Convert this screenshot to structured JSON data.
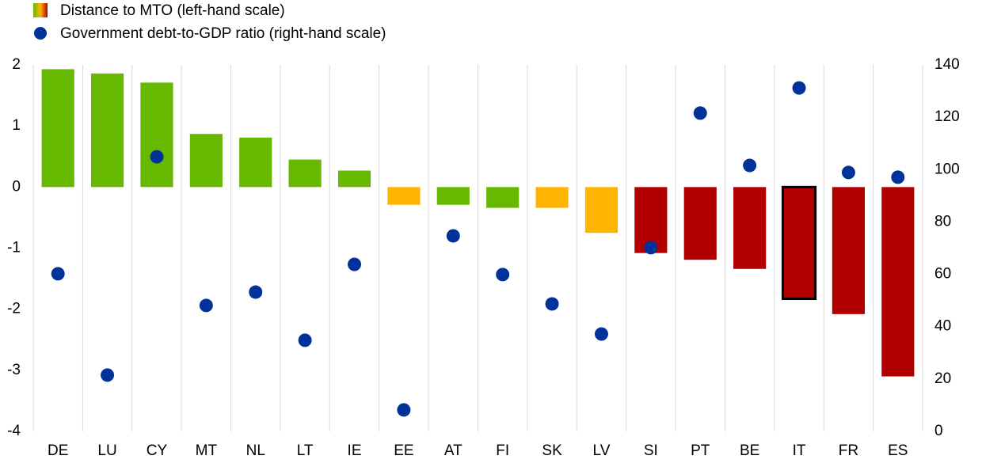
{
  "chart_data": {
    "type": "bar",
    "categories": [
      "DE",
      "LU",
      "CY",
      "MT",
      "NL",
      "LT",
      "IE",
      "EE",
      "AT",
      "FI",
      "SK",
      "LV",
      "SI",
      "PT",
      "BE",
      "IT",
      "FR",
      "ES"
    ],
    "series": [
      {
        "name": "Distance to MTO (left-hand scale)",
        "type": "bar",
        "axis": "y",
        "values": [
          1.93,
          1.86,
          1.71,
          0.87,
          0.81,
          0.45,
          0.27,
          -0.29,
          -0.29,
          -0.34,
          -0.34,
          -0.75,
          -1.08,
          -1.19,
          -1.34,
          -1.83,
          -2.08,
          -3.1
        ],
        "colors": [
          "#66b900",
          "#66b900",
          "#66b900",
          "#66b900",
          "#66b900",
          "#66b900",
          "#66b900",
          "#ffb400",
          "#66b900",
          "#66b900",
          "#ffb400",
          "#ffb400",
          "#b20000",
          "#b20000",
          "#b20000",
          "#b20000",
          "#b20000",
          "#b20000"
        ],
        "outlined": [
          false,
          false,
          false,
          false,
          false,
          false,
          false,
          false,
          false,
          false,
          false,
          false,
          false,
          false,
          false,
          true,
          false,
          false
        ]
      },
      {
        "name": "Government debt-to-GDP ratio (right-hand scale)",
        "type": "scatter",
        "axis": "y2",
        "color": "#003299",
        "values": [
          60.2,
          21.5,
          104.9,
          48.1,
          53.2,
          34.8,
          63.8,
          8.2,
          74.7,
          59.9,
          48.7,
          37.2,
          70.2,
          121.6,
          101.6,
          131.2,
          98.9,
          97.1
        ]
      }
    ],
    "ylim": [
      -4,
      2
    ],
    "yticks": [
      -4,
      -3,
      -2,
      -1,
      0,
      1,
      2
    ],
    "y2lim": [
      0,
      140
    ],
    "y2ticks": [
      0,
      20,
      40,
      60,
      80,
      100,
      120,
      140
    ]
  }
}
